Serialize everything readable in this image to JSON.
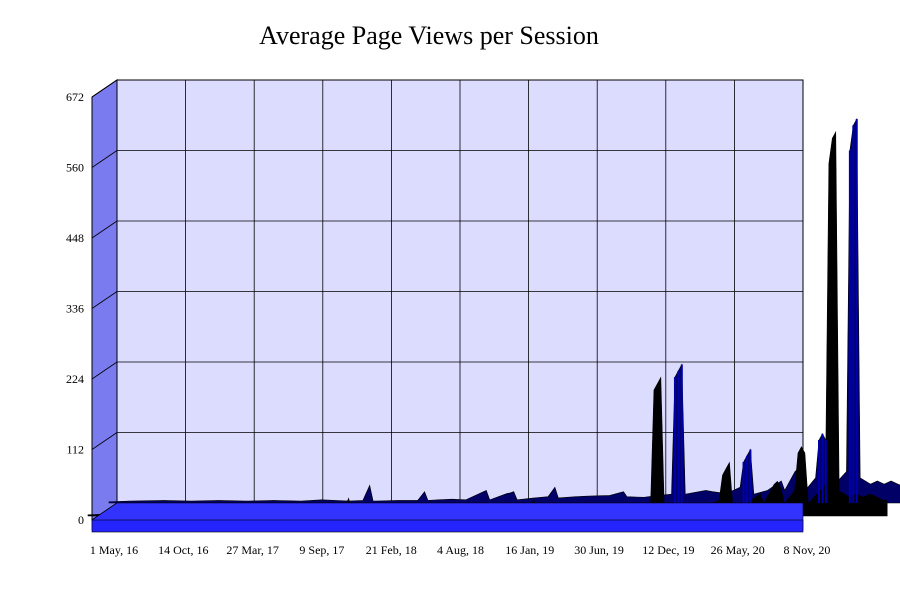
{
  "chart_data": {
    "type": "area",
    "title": "Average Page Views per Session",
    "xlabel": "",
    "ylabel": "",
    "ylim": [
      0,
      672
    ],
    "y_ticks": [
      "0",
      "112",
      "224",
      "336",
      "448",
      "560",
      "672"
    ],
    "x_ticks": [
      "1 May, 16",
      "14 Oct, 16",
      "27 Mar, 17",
      "9 Sep, 17",
      "21 Feb, 18",
      "4 Aug, 18",
      "16 Jan, 19",
      "30 Jun, 19",
      "12 Dec, 19",
      "26 May, 20",
      "8 Nov, 20"
    ],
    "grid": true,
    "style": "3d",
    "colors": {
      "series": "#000066",
      "floor": "#3333ff",
      "wall": "#dcdcff",
      "side": "#7b7bf0"
    },
    "series": [
      {
        "values": [
          [
            0.0,
            2
          ],
          [
            0.3,
            3
          ],
          [
            0.8,
            4
          ],
          [
            1.2,
            3
          ],
          [
            1.6,
            4
          ],
          [
            2.0,
            3
          ],
          [
            2.4,
            4
          ],
          [
            2.8,
            3
          ],
          [
            3.1,
            5
          ],
          [
            3.3,
            4
          ],
          [
            3.5,
            3
          ],
          [
            3.7,
            4
          ],
          [
            3.8,
            28
          ],
          [
            3.85,
            3
          ],
          [
            4.2,
            4
          ],
          [
            4.5,
            4
          ],
          [
            4.6,
            18
          ],
          [
            4.65,
            4
          ],
          [
            4.8,
            5
          ],
          [
            5.0,
            6
          ],
          [
            5.2,
            5
          ],
          [
            5.5,
            20
          ],
          [
            5.55,
            5
          ],
          [
            5.8,
            15
          ],
          [
            5.85,
            16
          ],
          [
            5.9,
            18
          ],
          [
            5.95,
            5
          ],
          [
            6.2,
            8
          ],
          [
            6.4,
            10
          ],
          [
            6.5,
            25
          ],
          [
            6.55,
            8
          ],
          [
            6.8,
            10
          ],
          [
            7.0,
            11
          ],
          [
            7.3,
            12
          ],
          [
            7.5,
            18
          ],
          [
            7.55,
            10
          ],
          [
            7.8,
            9
          ],
          [
            8.0,
            12
          ],
          [
            8.2,
            14
          ],
          [
            8.25,
            200
          ],
          [
            8.3,
            210
          ],
          [
            8.35,
            220
          ],
          [
            8.4,
            14
          ],
          [
            8.7,
            20
          ],
          [
            8.8,
            18
          ],
          [
            9.0,
            15
          ],
          [
            9.2,
            25
          ],
          [
            9.25,
            65
          ],
          [
            9.3,
            75
          ],
          [
            9.35,
            85
          ],
          [
            9.4,
            14
          ],
          [
            9.6,
            20
          ],
          [
            9.8,
            35
          ],
          [
            9.85,
            20
          ],
          [
            10.0,
            50
          ],
          [
            10.05,
            55
          ],
          [
            10.1,
            45
          ],
          [
            10.15,
            20
          ],
          [
            10.3,
            40
          ],
          [
            10.35,
            100
          ],
          [
            10.4,
            110
          ],
          [
            10.45,
            100
          ],
          [
            10.5,
            20
          ],
          [
            10.75,
            50
          ],
          [
            10.8,
            560
          ],
          [
            10.85,
            600
          ],
          [
            10.9,
            610
          ],
          [
            10.95,
            40
          ],
          [
            11.1,
            30
          ],
          [
            11.2,
            35
          ],
          [
            11.3,
            30
          ],
          [
            11.4,
            35
          ],
          [
            11.5,
            30
          ],
          [
            11.6,
            25
          ],
          [
            11.65,
            25
          ]
        ]
      }
    ]
  }
}
